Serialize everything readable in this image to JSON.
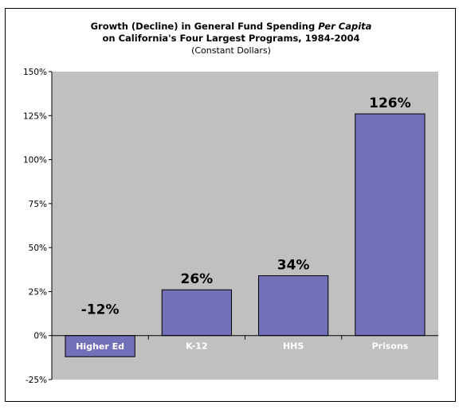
{
  "chart_data": {
    "type": "bar",
    "title_line1_prefix": "Growth (Decline) in General Fund Spending ",
    "title_line1_emphasis": "Per Capita",
    "title_line2": "on California's Four Largest Programs, 1984-2004",
    "subtitle": "(Constant Dollars)",
    "categories": [
      "Higher Ed",
      "K-12",
      "HHS",
      "Prisons"
    ],
    "values": [
      -12,
      26,
      34,
      126
    ],
    "data_labels": [
      "-12%",
      "26%",
      "34%",
      "126%"
    ],
    "yticks": [
      "150%",
      "125%",
      "100%",
      "75%",
      "50%",
      "25%",
      "0%",
      "-25%"
    ],
    "ylim": [
      -25,
      150
    ],
    "grid": false,
    "colors": {
      "bar": "#7170b8",
      "plot_bg": "#c0c0c0",
      "axis": "#000000",
      "category_label": "#ffffff"
    }
  }
}
